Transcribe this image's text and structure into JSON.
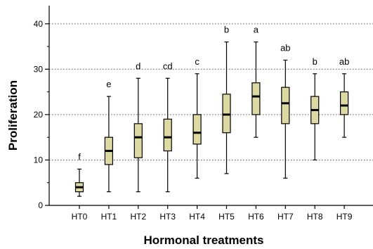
{
  "chart_data": {
    "type": "boxplot",
    "xlabel": "Hormonal treatments",
    "ylabel": "Proliferation",
    "ylim": [
      0,
      44
    ],
    "yticks": [
      0,
      10,
      20,
      30,
      40
    ],
    "grid": "horizontal dotted",
    "box_color": "#ddd9a3",
    "categories": [
      "HT0",
      "HT1",
      "HT2",
      "HT3",
      "HT4",
      "HT5",
      "HT6",
      "HT7",
      "HT8",
      "HT9"
    ],
    "boxes": [
      {
        "min": 2,
        "q1": 3,
        "median": 4,
        "q3": 5,
        "max": 8,
        "label": "f"
      },
      {
        "min": 3,
        "q1": 9,
        "median": 12,
        "q3": 15,
        "max": 24,
        "label": "e"
      },
      {
        "min": 3,
        "q1": 10.5,
        "median": 15,
        "q3": 18,
        "max": 28,
        "label": "d"
      },
      {
        "min": 3,
        "q1": 12,
        "median": 15,
        "q3": 19,
        "max": 28,
        "label": "cd"
      },
      {
        "min": 6,
        "q1": 13.5,
        "median": 16,
        "q3": 20,
        "max": 29,
        "label": "c"
      },
      {
        "min": 7,
        "q1": 16,
        "median": 20,
        "q3": 24.5,
        "max": 36,
        "label": "b"
      },
      {
        "min": 15,
        "q1": 20,
        "median": 24,
        "q3": 27,
        "max": 36,
        "label": "a"
      },
      {
        "min": 6,
        "q1": 18,
        "median": 22.5,
        "q3": 26,
        "max": 32,
        "label": "ab"
      },
      {
        "min": 10,
        "q1": 18,
        "median": 21,
        "q3": 24,
        "max": 29,
        "label": "b"
      },
      {
        "min": 15,
        "q1": 20,
        "median": 22,
        "q3": 25,
        "max": 29,
        "label": "ab"
      }
    ]
  }
}
